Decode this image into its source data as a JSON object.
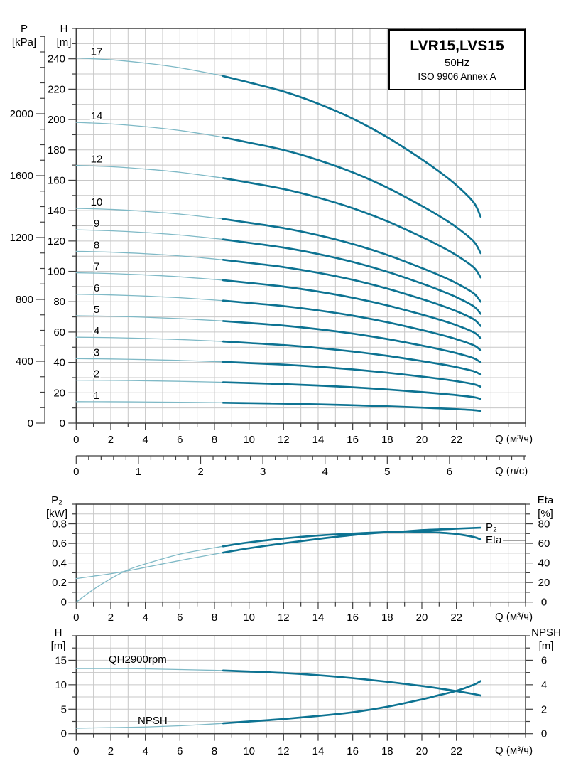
{
  "title_box": {
    "model": "LVR15,LVS15",
    "frequency": "50Hz",
    "standard": "ISO 9906 Annex A"
  },
  "colors": {
    "curve": "#0d7392",
    "curve_light": "#7fb9c6",
    "grid": "#c7c7c7",
    "frame": "#3f3f3f",
    "text": "#000000"
  },
  "axis_titles": {
    "pressure": [
      "P",
      "[kPa]"
    ],
    "head_main": [
      "H",
      "[m]"
    ],
    "power": [
      "P₂",
      "[kW]"
    ],
    "eta": [
      "Eta",
      "[%]"
    ],
    "head_single": [
      "H",
      "[m]"
    ],
    "npsh": [
      "NPSH",
      "[m]"
    ]
  },
  "x_axis_units": {
    "main": "Q (м³/ч)",
    "lps": "Q (л/с)",
    "middle": "Q (м³/ч)",
    "bottom": "Q (м³/ч)"
  },
  "curve_labels": {
    "p2": "P₂",
    "eta": "Eta",
    "qh": "QH2900rpm",
    "npsh": "NPSH"
  },
  "chart_data": [
    {
      "id": "main-qh-stage-curves",
      "type": "line",
      "title": "LVR15,LVS15 50Hz ISO 9906 Annex A",
      "x_axis": {
        "label": "Q (м³/ч)",
        "range": [
          0,
          26
        ],
        "minor_step": 1,
        "labeled_ticks": [
          0,
          2,
          4,
          6,
          8,
          10,
          12,
          14,
          16,
          18,
          20,
          22
        ]
      },
      "x_axis_secondary": {
        "label": "Q (л/с)",
        "labeled_ticks": [
          0,
          1,
          2,
          3,
          4,
          5,
          6
        ],
        "minor_step": 0.2,
        "max": 7.2
      },
      "y_axis": {
        "label": "H [m]",
        "range": [
          0,
          260
        ],
        "minor_step": 10,
        "labeled_ticks": [
          0,
          20,
          40,
          60,
          80,
          100,
          120,
          140,
          160,
          180,
          200,
          220,
          240
        ]
      },
      "y_axis_outer": {
        "label": "P [kPa]",
        "range": [
          0,
          2500
        ],
        "minor_step": 100,
        "labeled_ticks": [
          0,
          400,
          800,
          1200,
          1600,
          2000
        ]
      },
      "grid": true,
      "legend_position": "none",
      "stage_counts": [
        1,
        2,
        3,
        4,
        5,
        6,
        7,
        8,
        9,
        10,
        12,
        14,
        17
      ],
      "flow": [
        0,
        2,
        4,
        6,
        8,
        8.5,
        10,
        12,
        14,
        16,
        18,
        20,
        21,
        22,
        23,
        23.4
      ],
      "head_per_stage": [
        14.15,
        14.08,
        13.95,
        13.77,
        13.52,
        13.45,
        13.2,
        12.85,
        12.38,
        11.8,
        11.08,
        10.22,
        9.75,
        9.22,
        8.55,
        8.0
      ],
      "duty_range_start_q": 8.5
    },
    {
      "id": "power-and-efficiency",
      "type": "line",
      "x_axis": {
        "label": "Q (м³/ч)",
        "range": [
          0,
          26
        ],
        "minor_step": 1,
        "labeled_ticks": [
          0,
          2,
          4,
          6,
          8,
          10,
          12,
          14,
          16,
          18,
          20,
          22
        ]
      },
      "y_axis_left": {
        "label": "P₂ [kW]",
        "range": [
          0,
          1
        ],
        "minor_step": 0.1,
        "labeled_ticks": [
          0,
          0.2,
          0.4,
          0.6,
          0.8
        ]
      },
      "y_axis_right": {
        "label": "Eta [%]",
        "range": [
          0,
          100
        ],
        "minor_step": 10,
        "labeled_ticks": [
          0,
          20,
          40,
          60,
          80
        ]
      },
      "grid": true,
      "series": [
        {
          "name": "P₂",
          "axis": "left",
          "x": [
            0,
            1,
            2,
            3,
            4,
            6,
            8,
            8.5,
            10,
            12,
            14,
            16,
            18,
            19,
            20,
            21,
            22,
            23,
            23.4
          ],
          "y": [
            0.24,
            0.265,
            0.29,
            0.32,
            0.355,
            0.425,
            0.49,
            0.505,
            0.55,
            0.6,
            0.645,
            0.685,
            0.715,
            0.722,
            0.735,
            0.742,
            0.75,
            0.757,
            0.76
          ]
        },
        {
          "name": "Eta",
          "axis": "right",
          "x": [
            0,
            1,
            2,
            3,
            4,
            6,
            8,
            8.5,
            10,
            12,
            14,
            16,
            18,
            19,
            20,
            21,
            22,
            23,
            23.4
          ],
          "y": [
            0,
            13,
            24,
            33,
            39,
            49,
            55.5,
            57,
            61,
            65,
            68,
            70,
            71.5,
            72,
            71.8,
            71,
            69.5,
            66.5,
            64
          ]
        }
      ],
      "duty_range_start_q": 8.5
    },
    {
      "id": "single-stage-qh-and-npsh",
      "type": "line",
      "x_axis": {
        "label": "Q (м³/ч)",
        "range": [
          0,
          26
        ],
        "minor_step": 1,
        "labeled_ticks": [
          0,
          2,
          4,
          6,
          8,
          10,
          12,
          14,
          16,
          18,
          20,
          22
        ]
      },
      "y_axis_left": {
        "label": "H [m]",
        "range": [
          0,
          20
        ],
        "minor_step": 2.5,
        "labeled_ticks": [
          0,
          5,
          10,
          15
        ]
      },
      "y_axis_right": {
        "label": "NPSH [m]",
        "range": [
          0,
          8
        ],
        "minor_step": 1,
        "labeled_ticks": [
          0,
          2,
          4,
          6
        ]
      },
      "grid": true,
      "series": [
        {
          "name": "QH2900rpm",
          "axis": "left",
          "x": [
            0,
            2,
            4,
            6,
            8,
            8.5,
            10,
            12,
            14,
            16,
            18,
            20,
            21,
            22,
            23,
            23.4
          ],
          "y": [
            13.3,
            13.3,
            13.25,
            13.1,
            12.95,
            12.9,
            12.7,
            12.4,
            11.95,
            11.35,
            10.6,
            9.75,
            9.25,
            8.7,
            8.1,
            7.8
          ]
        },
        {
          "name": "NPSH",
          "axis": "right",
          "x": [
            0,
            2,
            4,
            6,
            8,
            8.5,
            10,
            12,
            14,
            16,
            18,
            20,
            21,
            22,
            23,
            23.4
          ],
          "y": [
            0.45,
            0.5,
            0.55,
            0.65,
            0.8,
            0.85,
            1.0,
            1.2,
            1.45,
            1.75,
            2.2,
            2.8,
            3.15,
            3.5,
            4.0,
            4.3
          ]
        }
      ],
      "duty_range_start_q": 8.5
    }
  ]
}
